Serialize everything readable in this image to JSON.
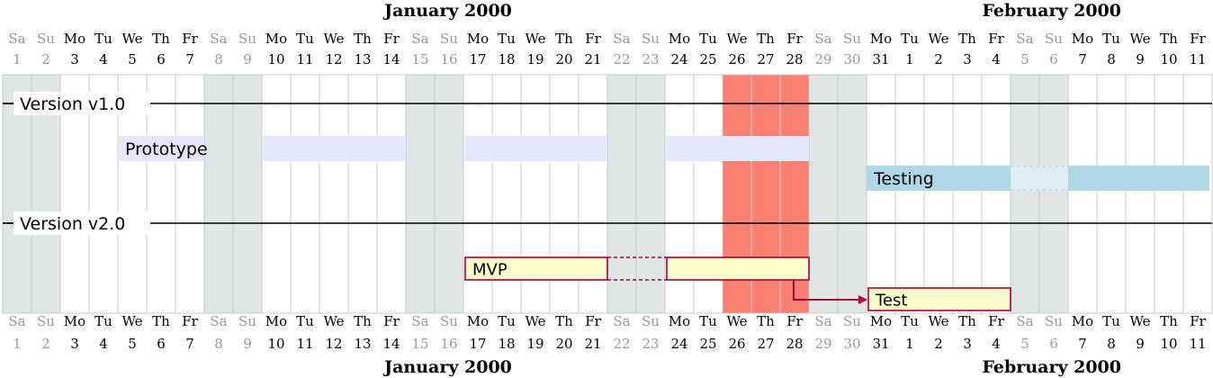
{
  "months": [
    {
      "label": "January 2000",
      "start_col": 0,
      "span": 31
    },
    {
      "label": "February 2000",
      "start_col": 31,
      "span": 11
    }
  ],
  "days": [
    {
      "dow": "Sa",
      "num": "1",
      "weekend": true
    },
    {
      "dow": "Su",
      "num": "2",
      "weekend": true
    },
    {
      "dow": "Mo",
      "num": "3",
      "weekend": false
    },
    {
      "dow": "Tu",
      "num": "4",
      "weekend": false
    },
    {
      "dow": "We",
      "num": "5",
      "weekend": false
    },
    {
      "dow": "Th",
      "num": "6",
      "weekend": false
    },
    {
      "dow": "Fr",
      "num": "7",
      "weekend": false
    },
    {
      "dow": "Sa",
      "num": "8",
      "weekend": true
    },
    {
      "dow": "Su",
      "num": "9",
      "weekend": true
    },
    {
      "dow": "Mo",
      "num": "10",
      "weekend": false
    },
    {
      "dow": "Tu",
      "num": "11",
      "weekend": false
    },
    {
      "dow": "We",
      "num": "12",
      "weekend": false
    },
    {
      "dow": "Th",
      "num": "13",
      "weekend": false
    },
    {
      "dow": "Fr",
      "num": "14",
      "weekend": false
    },
    {
      "dow": "Sa",
      "num": "15",
      "weekend": true
    },
    {
      "dow": "Su",
      "num": "16",
      "weekend": true
    },
    {
      "dow": "Mo",
      "num": "17",
      "weekend": false
    },
    {
      "dow": "Tu",
      "num": "18",
      "weekend": false
    },
    {
      "dow": "We",
      "num": "19",
      "weekend": false
    },
    {
      "dow": "Th",
      "num": "20",
      "weekend": false
    },
    {
      "dow": "Fr",
      "num": "21",
      "weekend": false
    },
    {
      "dow": "Sa",
      "num": "22",
      "weekend": true
    },
    {
      "dow": "Su",
      "num": "23",
      "weekend": true
    },
    {
      "dow": "Mo",
      "num": "24",
      "weekend": false
    },
    {
      "dow": "Tu",
      "num": "25",
      "weekend": false
    },
    {
      "dow": "We",
      "num": "26",
      "weekend": false
    },
    {
      "dow": "Th",
      "num": "27",
      "weekend": false
    },
    {
      "dow": "Fr",
      "num": "28",
      "weekend": false
    },
    {
      "dow": "Sa",
      "num": "29",
      "weekend": true
    },
    {
      "dow": "Su",
      "num": "30",
      "weekend": true
    },
    {
      "dow": "Mo",
      "num": "31",
      "weekend": false
    },
    {
      "dow": "Tu",
      "num": "1",
      "weekend": false
    },
    {
      "dow": "We",
      "num": "2",
      "weekend": false
    },
    {
      "dow": "Th",
      "num": "3",
      "weekend": false
    },
    {
      "dow": "Fr",
      "num": "4",
      "weekend": false
    },
    {
      "dow": "Sa",
      "num": "5",
      "weekend": true
    },
    {
      "dow": "Su",
      "num": "6",
      "weekend": true
    },
    {
      "dow": "Mo",
      "num": "7",
      "weekend": false
    },
    {
      "dow": "Tu",
      "num": "8",
      "weekend": false
    },
    {
      "dow": "We",
      "num": "9",
      "weekend": false
    },
    {
      "dow": "Th",
      "num": "10",
      "weekend": false
    },
    {
      "dow": "Fr",
      "num": "11",
      "weekend": false
    }
  ],
  "highlighted_days": [
    25,
    26,
    27
  ],
  "separators": [
    {
      "label": "Version v1.0"
    },
    {
      "label": "Version v2.0"
    }
  ],
  "tasks": [
    {
      "label": "Prototype",
      "start": 4,
      "end": 27,
      "style": "light-lavender"
    },
    {
      "label": "Testing",
      "start": 30,
      "end": 41,
      "style": "light-blue"
    },
    {
      "label": "MVP",
      "start": 16,
      "end": 27,
      "style": "boxed"
    },
    {
      "label": "Test",
      "start": 30,
      "end": 34,
      "style": "boxed"
    }
  ],
  "dependencies": [
    {
      "from": "MVP",
      "to": "Test"
    }
  ],
  "colors": {
    "weekend_bg": "#e0e6e6",
    "highlight_bg": "#fa8072",
    "gridline": "#c8c8c8",
    "weekend_text": "#9a9a9a",
    "weekday_text": "#000000",
    "prototype_fill": "#e6e6fa",
    "testing_fill": "#add8e6",
    "boxed_fill": "#ffffcc",
    "boxed_stroke": "#a80036",
    "arrow": "#a80036"
  }
}
